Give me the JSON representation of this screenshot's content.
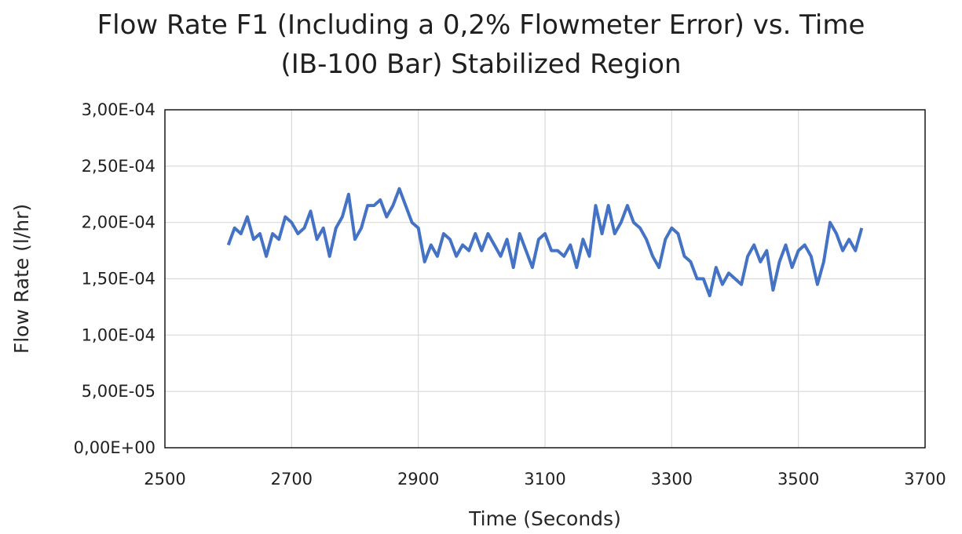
{
  "chart_data": {
    "type": "line",
    "title": "Flow Rate F1 (Including a 0,2% Flowmeter Error) vs. Time",
    "subtitle": "(IB-100 Bar) Stabilized Region",
    "xlabel": "Time (Seconds)",
    "ylabel": "Flow Rate (l/hr)",
    "xlim": [
      2500,
      3700
    ],
    "ylim": [
      0,
      0.0003
    ],
    "xticks": [
      2500,
      2700,
      2900,
      3100,
      3300,
      3500,
      3700
    ],
    "xtick_labels": [
      "2500",
      "2700",
      "2900",
      "3100",
      "3300",
      "3500",
      "3700"
    ],
    "yticks": [
      0,
      5e-05,
      0.0001,
      0.00015,
      0.0002,
      0.00025,
      0.0003
    ],
    "ytick_labels": [
      "0,00E+00",
      "5,00E-05",
      "1,00E-04",
      "1,50E-04",
      "2,00E-04",
      "2,50E-04",
      "3,00E-04"
    ],
    "grid": true,
    "legend": "none",
    "line_color": "#4472C4",
    "series": [
      {
        "x": [
          2600,
          2610,
          2620,
          2630,
          2640,
          2650,
          2660,
          2670,
          2680,
          2690,
          2700,
          2710,
          2720,
          2730,
          2740,
          2750,
          2760,
          2770,
          2780,
          2790,
          2800,
          2810,
          2820,
          2830,
          2840,
          2850,
          2860,
          2870,
          2880,
          2890,
          2900,
          2910,
          2920,
          2930,
          2940,
          2950,
          2960,
          2970,
          2980,
          2990,
          3000,
          3010,
          3020,
          3030,
          3040,
          3050,
          3060,
          3070,
          3080,
          3090,
          3100,
          3110,
          3120,
          3130,
          3140,
          3150,
          3160,
          3170,
          3180,
          3190,
          3200,
          3210,
          3220,
          3230,
          3240,
          3250,
          3260,
          3270,
          3280,
          3290,
          3300,
          3310,
          3320,
          3330,
          3340,
          3350,
          3360,
          3370,
          3380,
          3390,
          3400,
          3410,
          3420,
          3430,
          3440,
          3450,
          3460,
          3470,
          3480,
          3490,
          3500,
          3510,
          3520,
          3530,
          3540,
          3550,
          3560,
          3570,
          3580,
          3590,
          3600
        ],
        "values": [
          0.00018,
          0.000195,
          0.00019,
          0.000205,
          0.000185,
          0.00019,
          0.00017,
          0.00019,
          0.000185,
          0.000205,
          0.0002,
          0.00019,
          0.000195,
          0.00021,
          0.000185,
          0.000195,
          0.00017,
          0.000195,
          0.000205,
          0.000225,
          0.000185,
          0.000195,
          0.000215,
          0.000215,
          0.00022,
          0.000205,
          0.000215,
          0.00023,
          0.000215,
          0.0002,
          0.000195,
          0.000165,
          0.00018,
          0.00017,
          0.00019,
          0.000185,
          0.00017,
          0.00018,
          0.000175,
          0.00019,
          0.000175,
          0.00019,
          0.00018,
          0.00017,
          0.000185,
          0.00016,
          0.00019,
          0.000175,
          0.00016,
          0.000185,
          0.00019,
          0.000175,
          0.000175,
          0.00017,
          0.00018,
          0.00016,
          0.000185,
          0.00017,
          0.000215,
          0.00019,
          0.000215,
          0.00019,
          0.0002,
          0.000215,
          0.0002,
          0.000195,
          0.000185,
          0.00017,
          0.00016,
          0.000185,
          0.000195,
          0.00019,
          0.00017,
          0.000165,
          0.00015,
          0.00015,
          0.000135,
          0.00016,
          0.000145,
          0.000155,
          0.00015,
          0.000145,
          0.00017,
          0.00018,
          0.000165,
          0.000175,
          0.00014,
          0.000165,
          0.00018,
          0.00016,
          0.000175,
          0.00018,
          0.00017,
          0.000145,
          0.000165,
          0.0002,
          0.00019,
          0.000175,
          0.000185,
          0.000175,
          0.000195
        ]
      }
    ]
  }
}
